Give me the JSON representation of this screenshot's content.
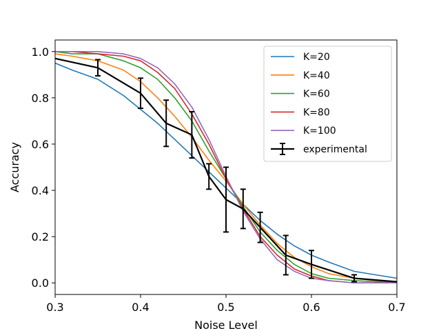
{
  "chart_data": {
    "type": "line",
    "title": "",
    "xlabel": "Noise Level",
    "ylabel": "Accuracy",
    "xlim": [
      0.3,
      0.7
    ],
    "ylim": [
      -0.05,
      1.05
    ],
    "xticks": [
      0.3,
      0.4,
      0.5,
      0.6,
      0.7
    ],
    "xtick_labels": [
      "0.3",
      "0.4",
      "0.5",
      "0.6",
      "0.7"
    ],
    "yticks": [
      0.0,
      0.2,
      0.4,
      0.6,
      0.8,
      1.0
    ],
    "ytick_labels": [
      "0.0",
      "0.2",
      "0.4",
      "0.6",
      "0.8",
      "1.0"
    ],
    "grid": false,
    "legend_position": "top-right",
    "series": [
      {
        "name": "K=20",
        "color": "#1f77b4",
        "x": [
          0.3,
          0.32,
          0.35,
          0.38,
          0.4,
          0.42,
          0.44,
          0.46,
          0.48,
          0.5,
          0.52,
          0.54,
          0.56,
          0.58,
          0.6,
          0.62,
          0.65,
          0.7
        ],
        "y": [
          0.95,
          0.92,
          0.88,
          0.81,
          0.75,
          0.69,
          0.62,
          0.55,
          0.48,
          0.41,
          0.34,
          0.27,
          0.21,
          0.16,
          0.12,
          0.09,
          0.05,
          0.02
        ]
      },
      {
        "name": "K=40",
        "color": "#ff7f0e",
        "x": [
          0.3,
          0.32,
          0.35,
          0.38,
          0.4,
          0.42,
          0.44,
          0.46,
          0.48,
          0.5,
          0.52,
          0.54,
          0.56,
          0.58,
          0.6,
          0.62,
          0.65,
          0.7
        ],
        "y": [
          0.99,
          0.98,
          0.96,
          0.92,
          0.87,
          0.8,
          0.72,
          0.63,
          0.53,
          0.44,
          0.34,
          0.25,
          0.17,
          0.11,
          0.07,
          0.04,
          0.02,
          0.0
        ]
      },
      {
        "name": "K=60",
        "color": "#2ca02c",
        "x": [
          0.3,
          0.32,
          0.35,
          0.38,
          0.4,
          0.42,
          0.44,
          0.46,
          0.48,
          0.5,
          0.52,
          0.54,
          0.56,
          0.58,
          0.6,
          0.62,
          0.65,
          0.7
        ],
        "y": [
          1.0,
          0.99,
          0.99,
          0.96,
          0.93,
          0.88,
          0.8,
          0.7,
          0.57,
          0.45,
          0.33,
          0.22,
          0.14,
          0.08,
          0.04,
          0.02,
          0.01,
          0.0
        ]
      },
      {
        "name": "K=80",
        "color": "#d62728",
        "x": [
          0.3,
          0.32,
          0.35,
          0.38,
          0.4,
          0.42,
          0.44,
          0.46,
          0.48,
          0.5,
          0.52,
          0.54,
          0.56,
          0.58,
          0.6,
          0.62,
          0.65,
          0.7
        ],
        "y": [
          1.0,
          1.0,
          0.99,
          0.98,
          0.96,
          0.91,
          0.84,
          0.73,
          0.6,
          0.45,
          0.32,
          0.2,
          0.12,
          0.06,
          0.03,
          0.01,
          0.0,
          0.0
        ]
      },
      {
        "name": "K=100",
        "color": "#9467bd",
        "x": [
          0.3,
          0.32,
          0.35,
          0.38,
          0.4,
          0.42,
          0.44,
          0.46,
          0.48,
          0.5,
          0.52,
          0.54,
          0.56,
          0.58,
          0.6,
          0.62,
          0.65,
          0.7
        ],
        "y": [
          1.0,
          1.0,
          1.0,
          0.99,
          0.97,
          0.93,
          0.86,
          0.76,
          0.62,
          0.46,
          0.31,
          0.19,
          0.1,
          0.05,
          0.02,
          0.01,
          0.0,
          0.0
        ]
      },
      {
        "name": "experimental",
        "color": "#000000",
        "x": [
          0.3,
          0.35,
          0.4,
          0.43,
          0.46,
          0.48,
          0.5,
          0.52,
          0.54,
          0.57,
          0.6,
          0.65,
          0.7
        ],
        "y": [
          0.97,
          0.93,
          0.82,
          0.69,
          0.64,
          0.46,
          0.36,
          0.32,
          0.24,
          0.12,
          0.08,
          0.02,
          0.005
        ],
        "yerr": [
          0.0,
          0.035,
          0.065,
          0.1,
          0.1,
          0.055,
          0.14,
          0.085,
          0.065,
          0.085,
          0.06,
          0.015,
          0.0
        ]
      }
    ]
  }
}
